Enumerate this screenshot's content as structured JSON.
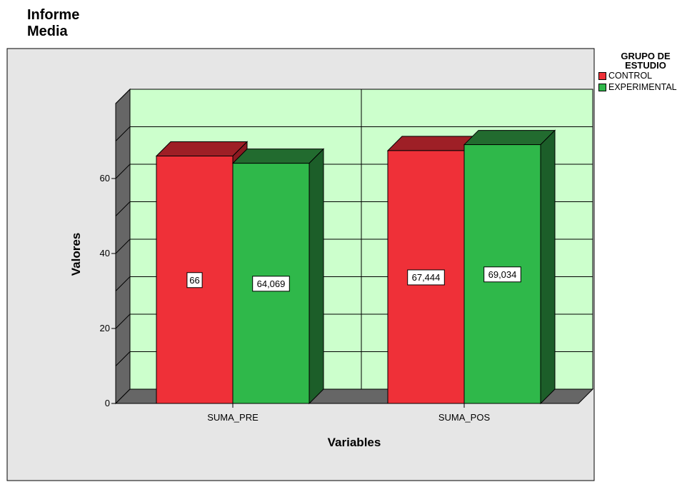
{
  "header": {
    "title_line1": "Informe",
    "title_line2": "Media"
  },
  "legend": {
    "title_line1": "GRUPO DE",
    "title_line2": "ESTUDIO",
    "position": "right",
    "items": [
      {
        "label": "CONTROL",
        "color": "#ef3038"
      },
      {
        "label": "EXPERIMENTAL",
        "color": "#2fb84a"
      }
    ]
  },
  "chart_data": {
    "type": "bar",
    "style": "3d-clustered",
    "categories": [
      "SUMA_PRE",
      "SUMA_POS"
    ],
    "series": [
      {
        "name": "CONTROL",
        "values": [
          66,
          67.444
        ],
        "labels": [
          "66",
          "67,444"
        ],
        "color": "#ef3038",
        "top_color": "#9e1f26",
        "side_color": "#8a1a21"
      },
      {
        "name": "EXPERIMENTAL",
        "values": [
          64.069,
          69.034
        ],
        "labels": [
          "64,069",
          "69,034"
        ],
        "color": "#2fb84a",
        "top_color": "#226b2f",
        "side_color": "#1c5e29"
      }
    ],
    "xlabel": "Variables",
    "ylabel": "Valores",
    "ylim": [
      0,
      80
    ],
    "yticks": [
      "0",
      "20",
      "40",
      "60"
    ],
    "grid": true,
    "wall_color": "#ccffcc",
    "background_color": "#e6e6e6"
  }
}
